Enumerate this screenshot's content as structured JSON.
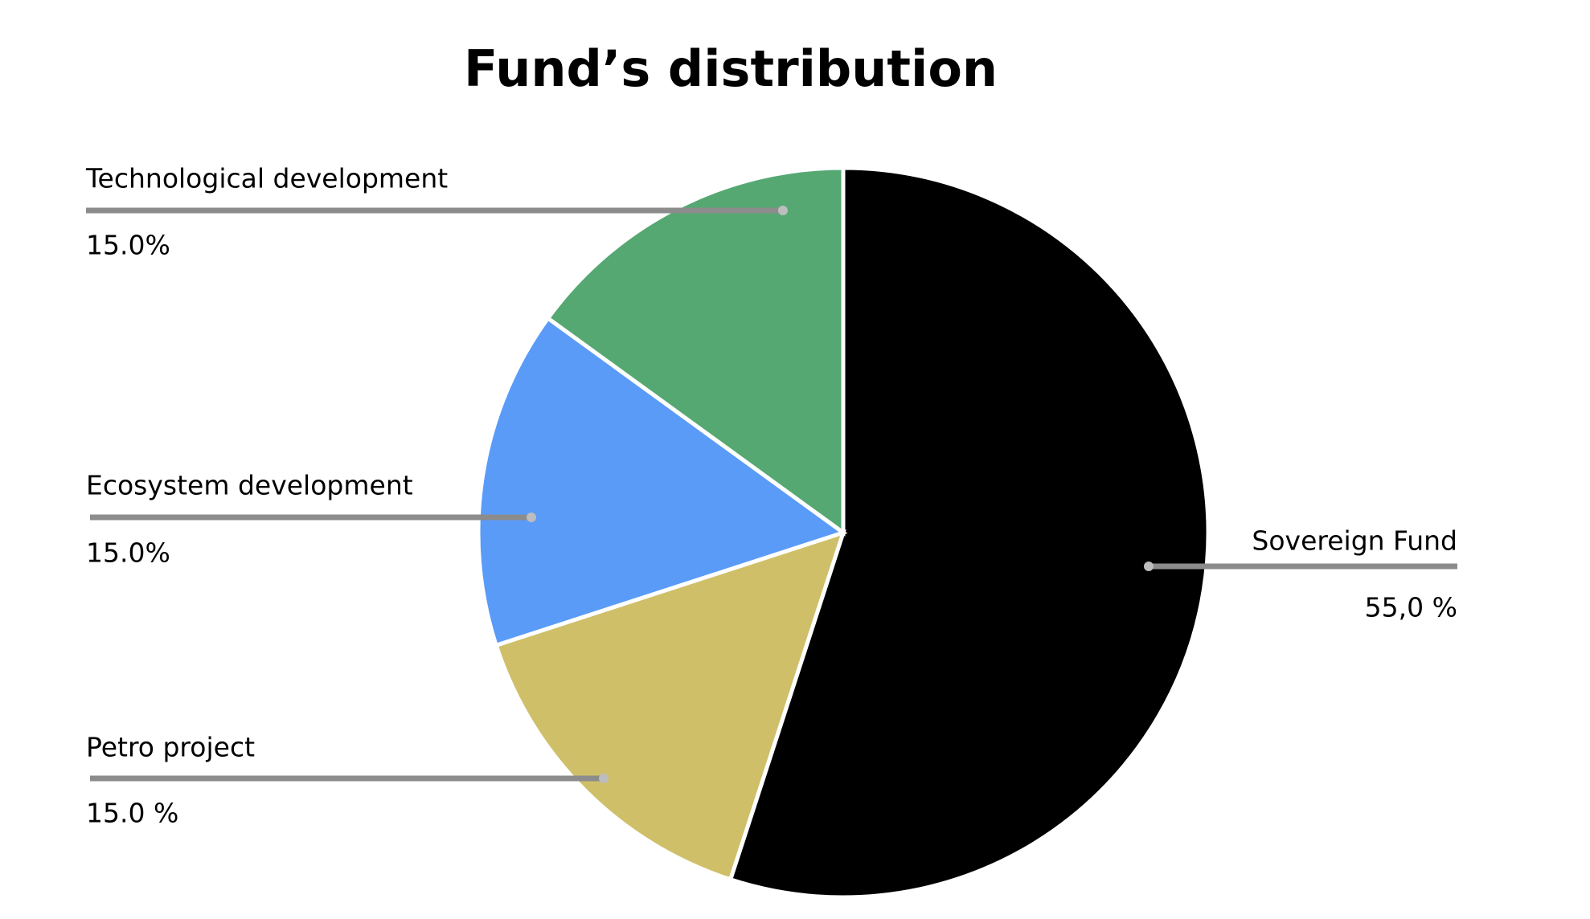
{
  "chart_data": {
    "type": "pie",
    "title": "Fund’s distribution",
    "categories": [
      "Sovereign Fund",
      "Petro project",
      "Ecosystem development",
      "Technological development"
    ],
    "values": [
      55,
      15,
      15,
      15
    ],
    "value_labels": [
      "55,0 %",
      "15.0 %",
      "15.0%",
      "15.0%"
    ],
    "colors": [
      "#000000",
      "#cfbf69",
      "#5a9bf8",
      "#55a872"
    ]
  }
}
